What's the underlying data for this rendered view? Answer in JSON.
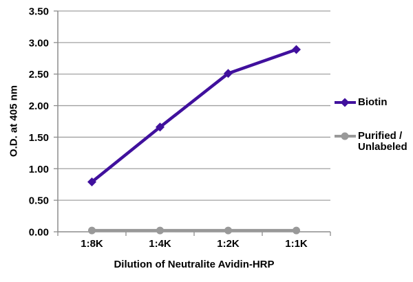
{
  "chart_data": {
    "type": "line",
    "title": "",
    "xlabel": "Dilution of Neutralite Avidin-HRP",
    "ylabel": "O.D. at 405 nm",
    "categories": [
      "1:8K",
      "1:4K",
      "1:2K",
      "1:1K"
    ],
    "series": [
      {
        "name": "Biotin",
        "marker": "diamond",
        "color": "#40109D",
        "values": [
          0.79,
          1.66,
          2.51,
          2.89
        ]
      },
      {
        "name": "Purified / Unlabeled",
        "marker": "circle",
        "color": "#999999",
        "values": [
          0.02,
          0.02,
          0.02,
          0.02
        ]
      }
    ],
    "ylim": [
      0,
      3.5
    ],
    "y_ticks": [
      "0.00",
      "0.50",
      "1.00",
      "1.50",
      "2.00",
      "2.50",
      "3.00",
      "3.50"
    ],
    "grid": true,
    "legend_position": "right"
  },
  "legend": {
    "items": [
      {
        "lines": [
          "Biotin"
        ]
      },
      {
        "lines": [
          "Purified /",
          "Unlabeled"
        ]
      }
    ]
  },
  "style": {
    "grid_color": "#A0A0A0",
    "axis_color": "#8C8C8C",
    "text_color": "#000000",
    "background": "#FFFFFF"
  }
}
